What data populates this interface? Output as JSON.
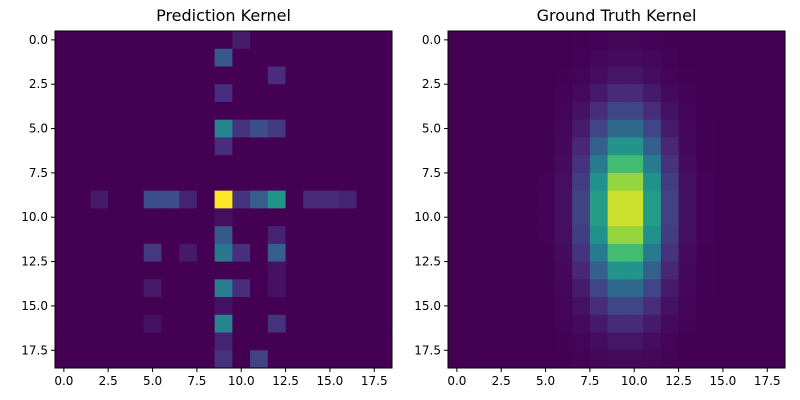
{
  "chart_data": [
    {
      "type": "heatmap",
      "title": "Prediction Kernel",
      "rows": 19,
      "cols": 19,
      "colormap": "viridis",
      "value_range": [
        0,
        1
      ],
      "x_ticks": [
        0.0,
        2.5,
        5.0,
        7.5,
        10.0,
        12.5,
        15.0,
        17.5
      ],
      "x_tick_labels": [
        "0.0",
        "2.5",
        "5.0",
        "7.5",
        "10.0",
        "12.5",
        "15.0",
        "17.5"
      ],
      "y_ticks": [
        0.0,
        2.5,
        5.0,
        7.5,
        10.0,
        12.5,
        15.0,
        17.5
      ],
      "y_tick_labels": [
        "0.0",
        "2.5",
        "5.0",
        "7.5",
        "10.0",
        "12.5",
        "15.0",
        "17.5"
      ],
      "cells": [
        [
          0,
          10,
          0.08
        ],
        [
          1,
          9,
          0.28
        ],
        [
          2,
          12,
          0.13
        ],
        [
          3,
          9,
          0.13
        ],
        [
          5,
          9,
          0.45
        ],
        [
          5,
          10,
          0.15
        ],
        [
          5,
          11,
          0.24
        ],
        [
          5,
          12,
          0.17
        ],
        [
          6,
          9,
          0.13
        ],
        [
          9,
          2,
          0.07
        ],
        [
          9,
          5,
          0.24
        ],
        [
          9,
          6,
          0.24
        ],
        [
          9,
          7,
          0.1
        ],
        [
          9,
          9,
          1.0
        ],
        [
          9,
          10,
          0.15
        ],
        [
          9,
          11,
          0.3
        ],
        [
          9,
          12,
          0.52
        ],
        [
          9,
          14,
          0.12
        ],
        [
          9,
          15,
          0.12
        ],
        [
          9,
          16,
          0.1
        ],
        [
          10,
          9,
          0.04
        ],
        [
          11,
          9,
          0.28
        ],
        [
          11,
          12,
          0.1
        ],
        [
          12,
          5,
          0.17
        ],
        [
          12,
          7,
          0.07
        ],
        [
          12,
          9,
          0.4
        ],
        [
          12,
          10,
          0.14
        ],
        [
          12,
          12,
          0.3
        ],
        [
          13,
          12,
          0.05
        ],
        [
          14,
          5,
          0.07
        ],
        [
          14,
          9,
          0.42
        ],
        [
          14,
          10,
          0.13
        ],
        [
          14,
          12,
          0.05
        ],
        [
          15,
          9,
          0.05
        ],
        [
          16,
          5,
          0.05
        ],
        [
          16,
          9,
          0.45
        ],
        [
          16,
          12,
          0.15
        ],
        [
          17,
          9,
          0.1
        ],
        [
          18,
          9,
          0.15
        ],
        [
          18,
          11,
          0.2
        ]
      ]
    },
    {
      "type": "heatmap",
      "title": "Ground Truth Kernel",
      "rows": 19,
      "cols": 19,
      "colormap": "viridis",
      "value_range": [
        0,
        1
      ],
      "distribution": "gaussian",
      "center": [
        9.5,
        9.5
      ],
      "sigma": [
        3.2,
        1.4
      ],
      "x_ticks": [
        0.0,
        2.5,
        5.0,
        7.5,
        10.0,
        12.5,
        15.0,
        17.5
      ],
      "x_tick_labels": [
        "0.0",
        "2.5",
        "5.0",
        "7.5",
        "10.0",
        "12.5",
        "15.0",
        "17.5"
      ],
      "y_ticks": [
        0.0,
        2.5,
        5.0,
        7.5,
        10.0,
        12.5,
        15.0,
        17.5
      ],
      "y_tick_labels": [
        "0.0",
        "2.5",
        "5.0",
        "7.5",
        "10.0",
        "12.5",
        "15.0",
        "17.5"
      ]
    }
  ]
}
